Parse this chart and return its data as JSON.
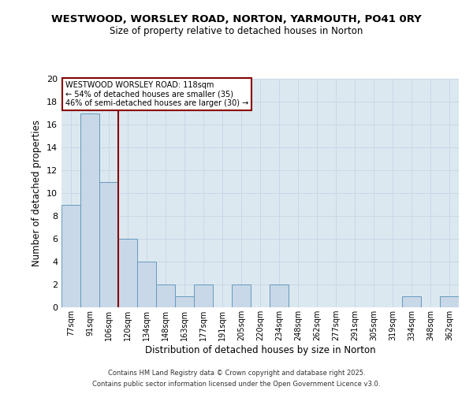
{
  "title": "WESTWOOD, WORSLEY ROAD, NORTON, YARMOUTH, PO41 0RY",
  "subtitle": "Size of property relative to detached houses in Norton",
  "xlabel": "Distribution of detached houses by size in Norton",
  "ylabel": "Number of detached properties",
  "categories": [
    "77sqm",
    "91sqm",
    "106sqm",
    "120sqm",
    "134sqm",
    "148sqm",
    "163sqm",
    "177sqm",
    "191sqm",
    "205sqm",
    "220sqm",
    "234sqm",
    "248sqm",
    "262sqm",
    "277sqm",
    "291sqm",
    "305sqm",
    "319sqm",
    "334sqm",
    "348sqm",
    "362sqm"
  ],
  "values": [
    9,
    17,
    11,
    6,
    4,
    2,
    1,
    2,
    0,
    2,
    0,
    2,
    0,
    0,
    0,
    0,
    0,
    0,
    1,
    0,
    1
  ],
  "bar_color": "#c8d8e8",
  "bar_edge_color": "#6699bb",
  "vline_index": 2.5,
  "vline_color": "#880000",
  "box_text_line1": "WESTWOOD WORSLEY ROAD: 118sqm",
  "box_text_line2": "← 54% of detached houses are smaller (35)",
  "box_text_line3": "46% of semi-detached houses are larger (30) →",
  "box_color": "white",
  "box_edge_color": "#880000",
  "ylim": [
    0,
    20
  ],
  "yticks": [
    0,
    2,
    4,
    6,
    8,
    10,
    12,
    14,
    16,
    18,
    20
  ],
  "grid_color": "#c8d8e8",
  "background_color": "#dce8f0",
  "footer_line1": "Contains HM Land Registry data © Crown copyright and database right 2025.",
  "footer_line2": "Contains public sector information licensed under the Open Government Licence v3.0."
}
